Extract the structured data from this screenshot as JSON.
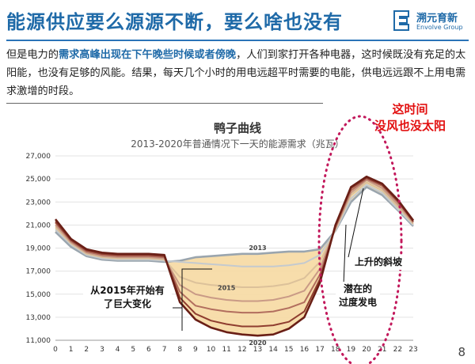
{
  "header": {
    "title": "能源供应要么源源不断，要么啥也没有",
    "logo_cn": "溯元育新",
    "logo_en": "Envolve Group"
  },
  "paragraph": {
    "p1": "但是电力的",
    "hl1": "需求高峰出现在下午晚些时候或者傍晚",
    "p2": "，人们到家打开各种电器，这时候既没有充足的太阳能，也没有足够的风能。结果，每天几个小时的用电远超平时需要的电能，供电远远跟不上用电需求激增的时段。"
  },
  "corner_note": {
    "line1": "这时间",
    "line2": "没风也没太阳"
  },
  "chart_data": {
    "type": "line",
    "title": "鸭子曲线",
    "subtitle": "2013-2020年普通情况下一天的能源需求（兆瓦）",
    "x": [
      0,
      1,
      2,
      3,
      4,
      5,
      6,
      7,
      8,
      9,
      10,
      11,
      12,
      13,
      14,
      15,
      16,
      17,
      18,
      19,
      20,
      21,
      22,
      23
    ],
    "x_ticks": [
      "0",
      "1",
      "2",
      "3",
      "4",
      "5",
      "6",
      "7",
      "8",
      "9",
      "10",
      "11",
      "12",
      "13",
      "14",
      "15",
      "16",
      "17",
      "18",
      "19",
      "20",
      "21",
      "22",
      "23"
    ],
    "y_ticks": [
      "11,000",
      "13,000",
      "15,000",
      "17,000",
      "19,000",
      "21,000",
      "23,000",
      "25,000",
      "27,000"
    ],
    "ylim": [
      11000,
      27000
    ],
    "grid": true,
    "series": [
      {
        "name": "2013",
        "color": "#9aa5ae",
        "values": [
          20400,
          19100,
          18300,
          18000,
          17900,
          17900,
          17900,
          17800,
          17900,
          18200,
          18300,
          18400,
          18500,
          18500,
          18600,
          18700,
          18700,
          18900,
          20500,
          23000,
          24300,
          23600,
          22300,
          20900
        ]
      },
      {
        "name": "",
        "color": "#c4cacf",
        "values": [
          20600,
          19300,
          18400,
          18100,
          18000,
          18000,
          18000,
          17900,
          17800,
          17700,
          17600,
          17500,
          17400,
          17400,
          17400,
          17500,
          17700,
          18400,
          20500,
          23300,
          24500,
          23800,
          22400,
          21000
        ]
      },
      {
        "name": "2015",
        "color": "#dcc19a",
        "values": [
          20800,
          19400,
          18500,
          18200,
          18100,
          18100,
          18100,
          18000,
          16500,
          16000,
          15800,
          15700,
          15600,
          15600,
          15700,
          15900,
          16400,
          17800,
          20600,
          23600,
          24700,
          24000,
          22600,
          21100
        ]
      },
      {
        "name": "",
        "color": "#c99a86",
        "values": [
          21000,
          19500,
          18600,
          18300,
          18200,
          18200,
          18200,
          18100,
          15800,
          15000,
          14700,
          14500,
          14400,
          14400,
          14500,
          14800,
          15300,
          17200,
          20700,
          23800,
          24900,
          24200,
          22800,
          21200
        ]
      },
      {
        "name": "",
        "color": "#b26e5e",
        "values": [
          21200,
          19600,
          18700,
          18400,
          18300,
          18300,
          18300,
          18200,
          15200,
          14000,
          13700,
          13500,
          13400,
          13400,
          13500,
          13800,
          14300,
          16700,
          20800,
          24000,
          25000,
          24400,
          23000,
          21300
        ]
      },
      {
        "name": "",
        "color": "#8f3d2f",
        "values": [
          21300,
          19700,
          18800,
          18500,
          18400,
          18400,
          18400,
          18300,
          14700,
          13300,
          12700,
          12400,
          12200,
          12200,
          12300,
          12600,
          13500,
          16300,
          20900,
          24200,
          25100,
          24500,
          23100,
          21300
        ]
      },
      {
        "name": "2020",
        "color": "#6a1f16",
        "values": [
          21500,
          19800,
          18900,
          18600,
          18500,
          18500,
          18500,
          18400,
          14300,
          12800,
          12100,
          11700,
          11500,
          11400,
          11500,
          12000,
          13000,
          16000,
          21000,
          24300,
          25200,
          24600,
          23200,
          21400
        ]
      }
    ],
    "annotations": {
      "big_change": [
        "从2015年开始有",
        "了巨大变化"
      ],
      "ramp": "上升的斜坡",
      "overgen": [
        "潜在的",
        "过度发电"
      ]
    }
  },
  "page_number": "8"
}
